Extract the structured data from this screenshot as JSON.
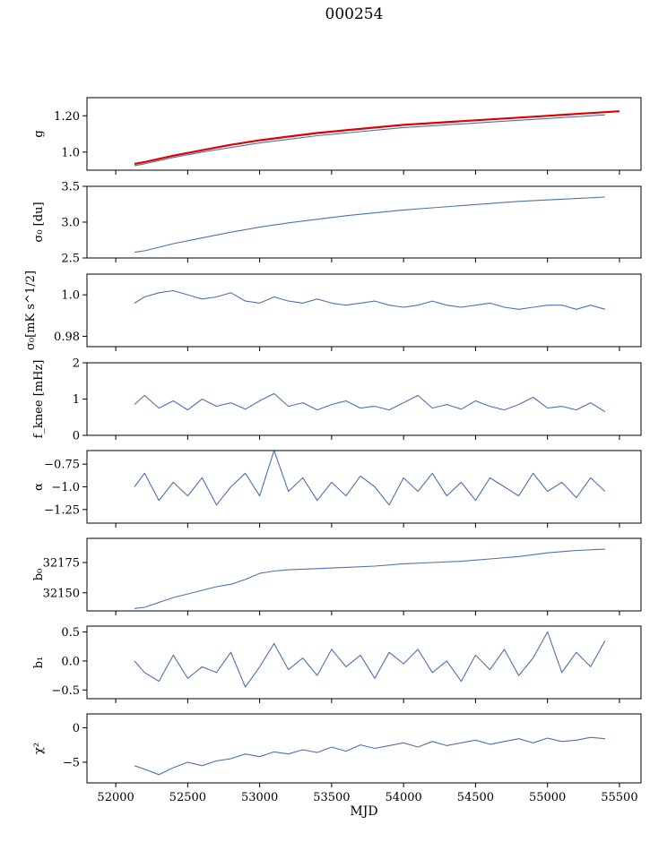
{
  "title": "000254",
  "chart_data": [
    {
      "type": "line",
      "ylabel": "g",
      "ylim": [
        0.9,
        1.3
      ],
      "yticks": [
        1.0,
        1.2
      ],
      "xlim": [
        51800,
        55650
      ],
      "series": [
        {
          "color": "#4c72b0",
          "x": [
            52130,
            52200,
            52400,
            52600,
            52800,
            53000,
            53200,
            53400,
            53600,
            53800,
            54000,
            54200,
            54400,
            54600,
            54800,
            55000,
            55200,
            55400
          ],
          "y": [
            0.925,
            0.935,
            0.97,
            1.0,
            1.025,
            1.05,
            1.07,
            1.09,
            1.105,
            1.12,
            1.135,
            1.145,
            1.155,
            1.165,
            1.175,
            1.185,
            1.195,
            1.205
          ]
        },
        {
          "color": "#e00000",
          "x": [
            52130,
            52200,
            52400,
            52600,
            52800,
            53000,
            53200,
            53400,
            53600,
            53800,
            54000,
            54200,
            54400,
            54600,
            54800,
            55000,
            55200,
            55400,
            55500
          ],
          "y": [
            0.935,
            0.945,
            0.98,
            1.01,
            1.04,
            1.065,
            1.085,
            1.105,
            1.12,
            1.135,
            1.15,
            1.16,
            1.17,
            1.18,
            1.19,
            1.2,
            1.21,
            1.22,
            1.225
          ]
        }
      ]
    },
    {
      "type": "line",
      "ylabel": "σ₀ [du]",
      "ylim": [
        2.5,
        3.5
      ],
      "yticks": [
        2.5,
        3.0,
        3.5
      ],
      "xlim": [
        51800,
        55650
      ],
      "series": [
        {
          "color": "#4c72b0",
          "x": [
            52130,
            52200,
            52400,
            52600,
            52800,
            53000,
            53200,
            53400,
            53600,
            53800,
            54000,
            54200,
            54400,
            54600,
            54800,
            55000,
            55200,
            55400
          ],
          "y": [
            2.58,
            2.6,
            2.7,
            2.78,
            2.86,
            2.93,
            2.99,
            3.04,
            3.09,
            3.13,
            3.17,
            3.2,
            3.23,
            3.26,
            3.29,
            3.31,
            3.33,
            3.35
          ]
        }
      ]
    },
    {
      "type": "line",
      "ylabel": "σ₀[mK s^1/2]",
      "ylim": [
        0.975,
        1.01
      ],
      "yticks": [
        0.98,
        1.0
      ],
      "xlim": [
        51800,
        55650
      ],
      "series": [
        {
          "color": "#4c72b0",
          "x": [
            52130,
            52200,
            52300,
            52400,
            52500,
            52600,
            52700,
            52800,
            52900,
            53000,
            53100,
            53200,
            53300,
            53400,
            53500,
            53600,
            53700,
            53800,
            53900,
            54000,
            54100,
            54200,
            54300,
            54400,
            54500,
            54600,
            54700,
            54800,
            54900,
            55000,
            55100,
            55200,
            55300,
            55400
          ],
          "y": [
            0.996,
            0.999,
            1.001,
            1.002,
            1.0,
            0.998,
            0.999,
            1.001,
            0.997,
            0.996,
            0.999,
            0.997,
            0.996,
            0.998,
            0.996,
            0.995,
            0.996,
            0.997,
            0.995,
            0.994,
            0.995,
            0.997,
            0.995,
            0.994,
            0.995,
            0.996,
            0.994,
            0.993,
            0.994,
            0.995,
            0.995,
            0.993,
            0.995,
            0.993
          ]
        }
      ]
    },
    {
      "type": "line",
      "ylabel": "f_knee [mHz]",
      "ylim": [
        0,
        2
      ],
      "yticks": [
        0,
        1,
        2
      ],
      "xlim": [
        51800,
        55650
      ],
      "series": [
        {
          "color": "#4c72b0",
          "x": [
            52130,
            52200,
            52300,
            52400,
            52500,
            52600,
            52700,
            52800,
            52900,
            53000,
            53100,
            53200,
            53300,
            53400,
            53500,
            53600,
            53700,
            53800,
            53900,
            54000,
            54100,
            54200,
            54300,
            54400,
            54500,
            54600,
            54700,
            54800,
            54900,
            55000,
            55100,
            55200,
            55300,
            55400
          ],
          "y": [
            0.85,
            1.1,
            0.75,
            0.95,
            0.7,
            1.0,
            0.8,
            0.9,
            0.72,
            0.95,
            1.15,
            0.8,
            0.9,
            0.7,
            0.85,
            0.95,
            0.75,
            0.8,
            0.7,
            0.9,
            1.1,
            0.75,
            0.85,
            0.72,
            0.95,
            0.8,
            0.7,
            0.85,
            1.05,
            0.75,
            0.8,
            0.7,
            0.9,
            0.65
          ]
        }
      ]
    },
    {
      "type": "line",
      "ylabel": "α",
      "ylim": [
        -1.4,
        -0.6
      ],
      "yticks": [
        -0.75,
        -1.0,
        -1.25
      ],
      "xlim": [
        51800,
        55650
      ],
      "series": [
        {
          "color": "#4c72b0",
          "x": [
            52130,
            52200,
            52300,
            52400,
            52500,
            52600,
            52700,
            52800,
            52900,
            53000,
            53100,
            53200,
            53300,
            53400,
            53500,
            53600,
            53700,
            53800,
            53900,
            54000,
            54100,
            54200,
            54300,
            54400,
            54500,
            54600,
            54700,
            54800,
            54900,
            55000,
            55100,
            55200,
            55300,
            55400
          ],
          "y": [
            -1.0,
            -0.85,
            -1.15,
            -0.95,
            -1.1,
            -0.9,
            -1.2,
            -1.0,
            -0.85,
            -1.1,
            -0.6,
            -1.05,
            -0.9,
            -1.15,
            -0.95,
            -1.1,
            -0.88,
            -1.0,
            -1.2,
            -0.9,
            -1.05,
            -0.85,
            -1.1,
            -0.95,
            -1.15,
            -0.9,
            -1.0,
            -1.1,
            -0.85,
            -1.05,
            -0.95,
            -1.12,
            -0.9,
            -1.05
          ]
        }
      ]
    },
    {
      "type": "line",
      "ylabel": "b₀",
      "ylim": [
        32135,
        32195
      ],
      "yticks": [
        32150,
        32175
      ],
      "xlim": [
        51800,
        55650
      ],
      "series": [
        {
          "color": "#4c72b0",
          "x": [
            52130,
            52200,
            52300,
            52400,
            52500,
            52600,
            52700,
            52800,
            52900,
            53000,
            53100,
            53200,
            53400,
            53600,
            53800,
            54000,
            54200,
            54400,
            54600,
            54800,
            55000,
            55200,
            55400
          ],
          "y": [
            32137,
            32138,
            32142,
            32146,
            32149,
            32152,
            32155,
            32157,
            32161,
            32166,
            32168,
            32169,
            32170,
            32171,
            32172,
            32174,
            32175,
            32176,
            32178,
            32180,
            32183,
            32185,
            32186
          ]
        }
      ]
    },
    {
      "type": "line",
      "ylabel": "b₁",
      "ylim": [
        -0.65,
        0.6
      ],
      "yticks": [
        0.5,
        0.0,
        -0.5
      ],
      "xlim": [
        51800,
        55650
      ],
      "series": [
        {
          "color": "#4c72b0",
          "x": [
            52130,
            52200,
            52300,
            52400,
            52500,
            52600,
            52700,
            52800,
            52900,
            53000,
            53100,
            53200,
            53300,
            53400,
            53500,
            53600,
            53700,
            53800,
            53900,
            54000,
            54100,
            54200,
            54300,
            54400,
            54500,
            54600,
            54700,
            54800,
            54900,
            55000,
            55100,
            55200,
            55300,
            55400
          ],
          "y": [
            0.0,
            -0.2,
            -0.35,
            0.1,
            -0.3,
            -0.1,
            -0.2,
            0.15,
            -0.45,
            -0.1,
            0.3,
            -0.15,
            0.05,
            -0.25,
            0.2,
            -0.1,
            0.1,
            -0.3,
            0.15,
            -0.05,
            0.2,
            -0.2,
            0.0,
            -0.35,
            0.1,
            -0.15,
            0.2,
            -0.25,
            0.05,
            0.5,
            -0.2,
            0.15,
            -0.1,
            0.35
          ]
        }
      ]
    },
    {
      "type": "line",
      "ylabel": "χ²",
      "ylim": [
        -8,
        2
      ],
      "yticks": [
        0,
        -5
      ],
      "xlim": [
        51800,
        55650
      ],
      "xlabel": "MJD",
      "xticks": [
        52000,
        52500,
        53000,
        53500,
        54000,
        54500,
        55000,
        55500
      ],
      "series": [
        {
          "color": "#4c72b0",
          "x": [
            52130,
            52200,
            52300,
            52400,
            52500,
            52600,
            52700,
            52800,
            52900,
            53000,
            53100,
            53200,
            53300,
            53400,
            53500,
            53600,
            53700,
            53800,
            53900,
            54000,
            54100,
            54200,
            54300,
            54400,
            54500,
            54600,
            54700,
            54800,
            54900,
            55000,
            55100,
            55200,
            55300,
            55400
          ],
          "y": [
            -5.5,
            -6.0,
            -6.8,
            -5.8,
            -5.0,
            -5.5,
            -4.8,
            -4.5,
            -3.8,
            -4.2,
            -3.5,
            -3.8,
            -3.2,
            -3.6,
            -2.8,
            -3.4,
            -2.5,
            -3.0,
            -2.6,
            -2.2,
            -2.8,
            -2.0,
            -2.6,
            -2.2,
            -1.8,
            -2.4,
            -2.0,
            -1.6,
            -2.2,
            -1.5,
            -2.0,
            -1.8,
            -1.4,
            -1.6
          ]
        }
      ]
    }
  ]
}
